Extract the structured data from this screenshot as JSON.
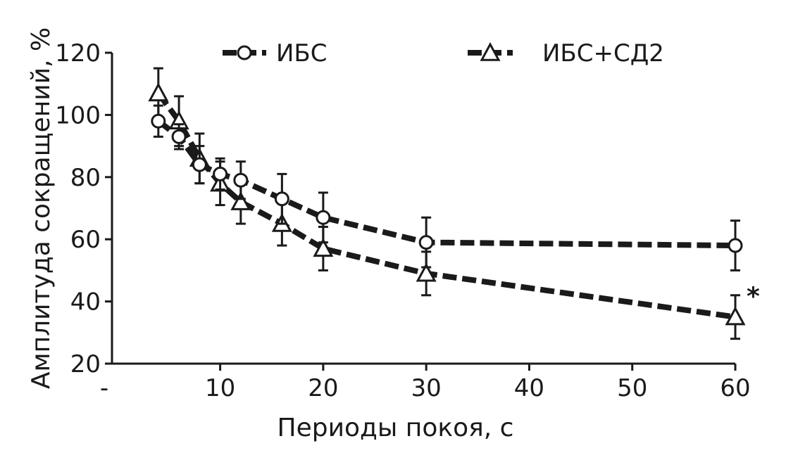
{
  "chart_data": {
    "type": "line",
    "xlabel": "Периоды покоя, с",
    "ylabel": "Амплитуда сокращений, %",
    "xlim": [
      -0.5,
      60
    ],
    "ylim": [
      20,
      120
    ],
    "x_ticks": [
      0,
      10,
      20,
      30,
      40,
      50,
      60
    ],
    "x_tick_labels": [
      "-",
      "10",
      "20",
      "30",
      "40",
      "50",
      "60"
    ],
    "y_ticks": [
      20,
      40,
      60,
      80,
      100,
      120
    ],
    "y_tick_labels": [
      "20",
      "40",
      "60",
      "80",
      "100",
      "120"
    ],
    "legend_position": "top",
    "series": [
      {
        "name": "ИБС",
        "marker": "circle",
        "x": [
          4,
          6,
          8,
          10,
          12,
          16,
          20,
          30,
          60
        ],
        "y": [
          98,
          93,
          84,
          81,
          79,
          73,
          67,
          59,
          58
        ],
        "err": [
          5,
          4,
          6,
          5,
          6,
          8,
          8,
          8,
          8
        ]
      },
      {
        "name": "ИБС+СД2",
        "marker": "triangle",
        "x": [
          4,
          6,
          8,
          10,
          12,
          16,
          20,
          30,
          60
        ],
        "y": [
          107,
          98,
          86,
          78,
          72,
          65,
          57,
          49,
          35
        ],
        "err": [
          8,
          8,
          8,
          7,
          7,
          7,
          7,
          7,
          7
        ]
      }
    ],
    "annotations": [
      {
        "text": "*",
        "x": 60,
        "y": 38
      }
    ]
  }
}
